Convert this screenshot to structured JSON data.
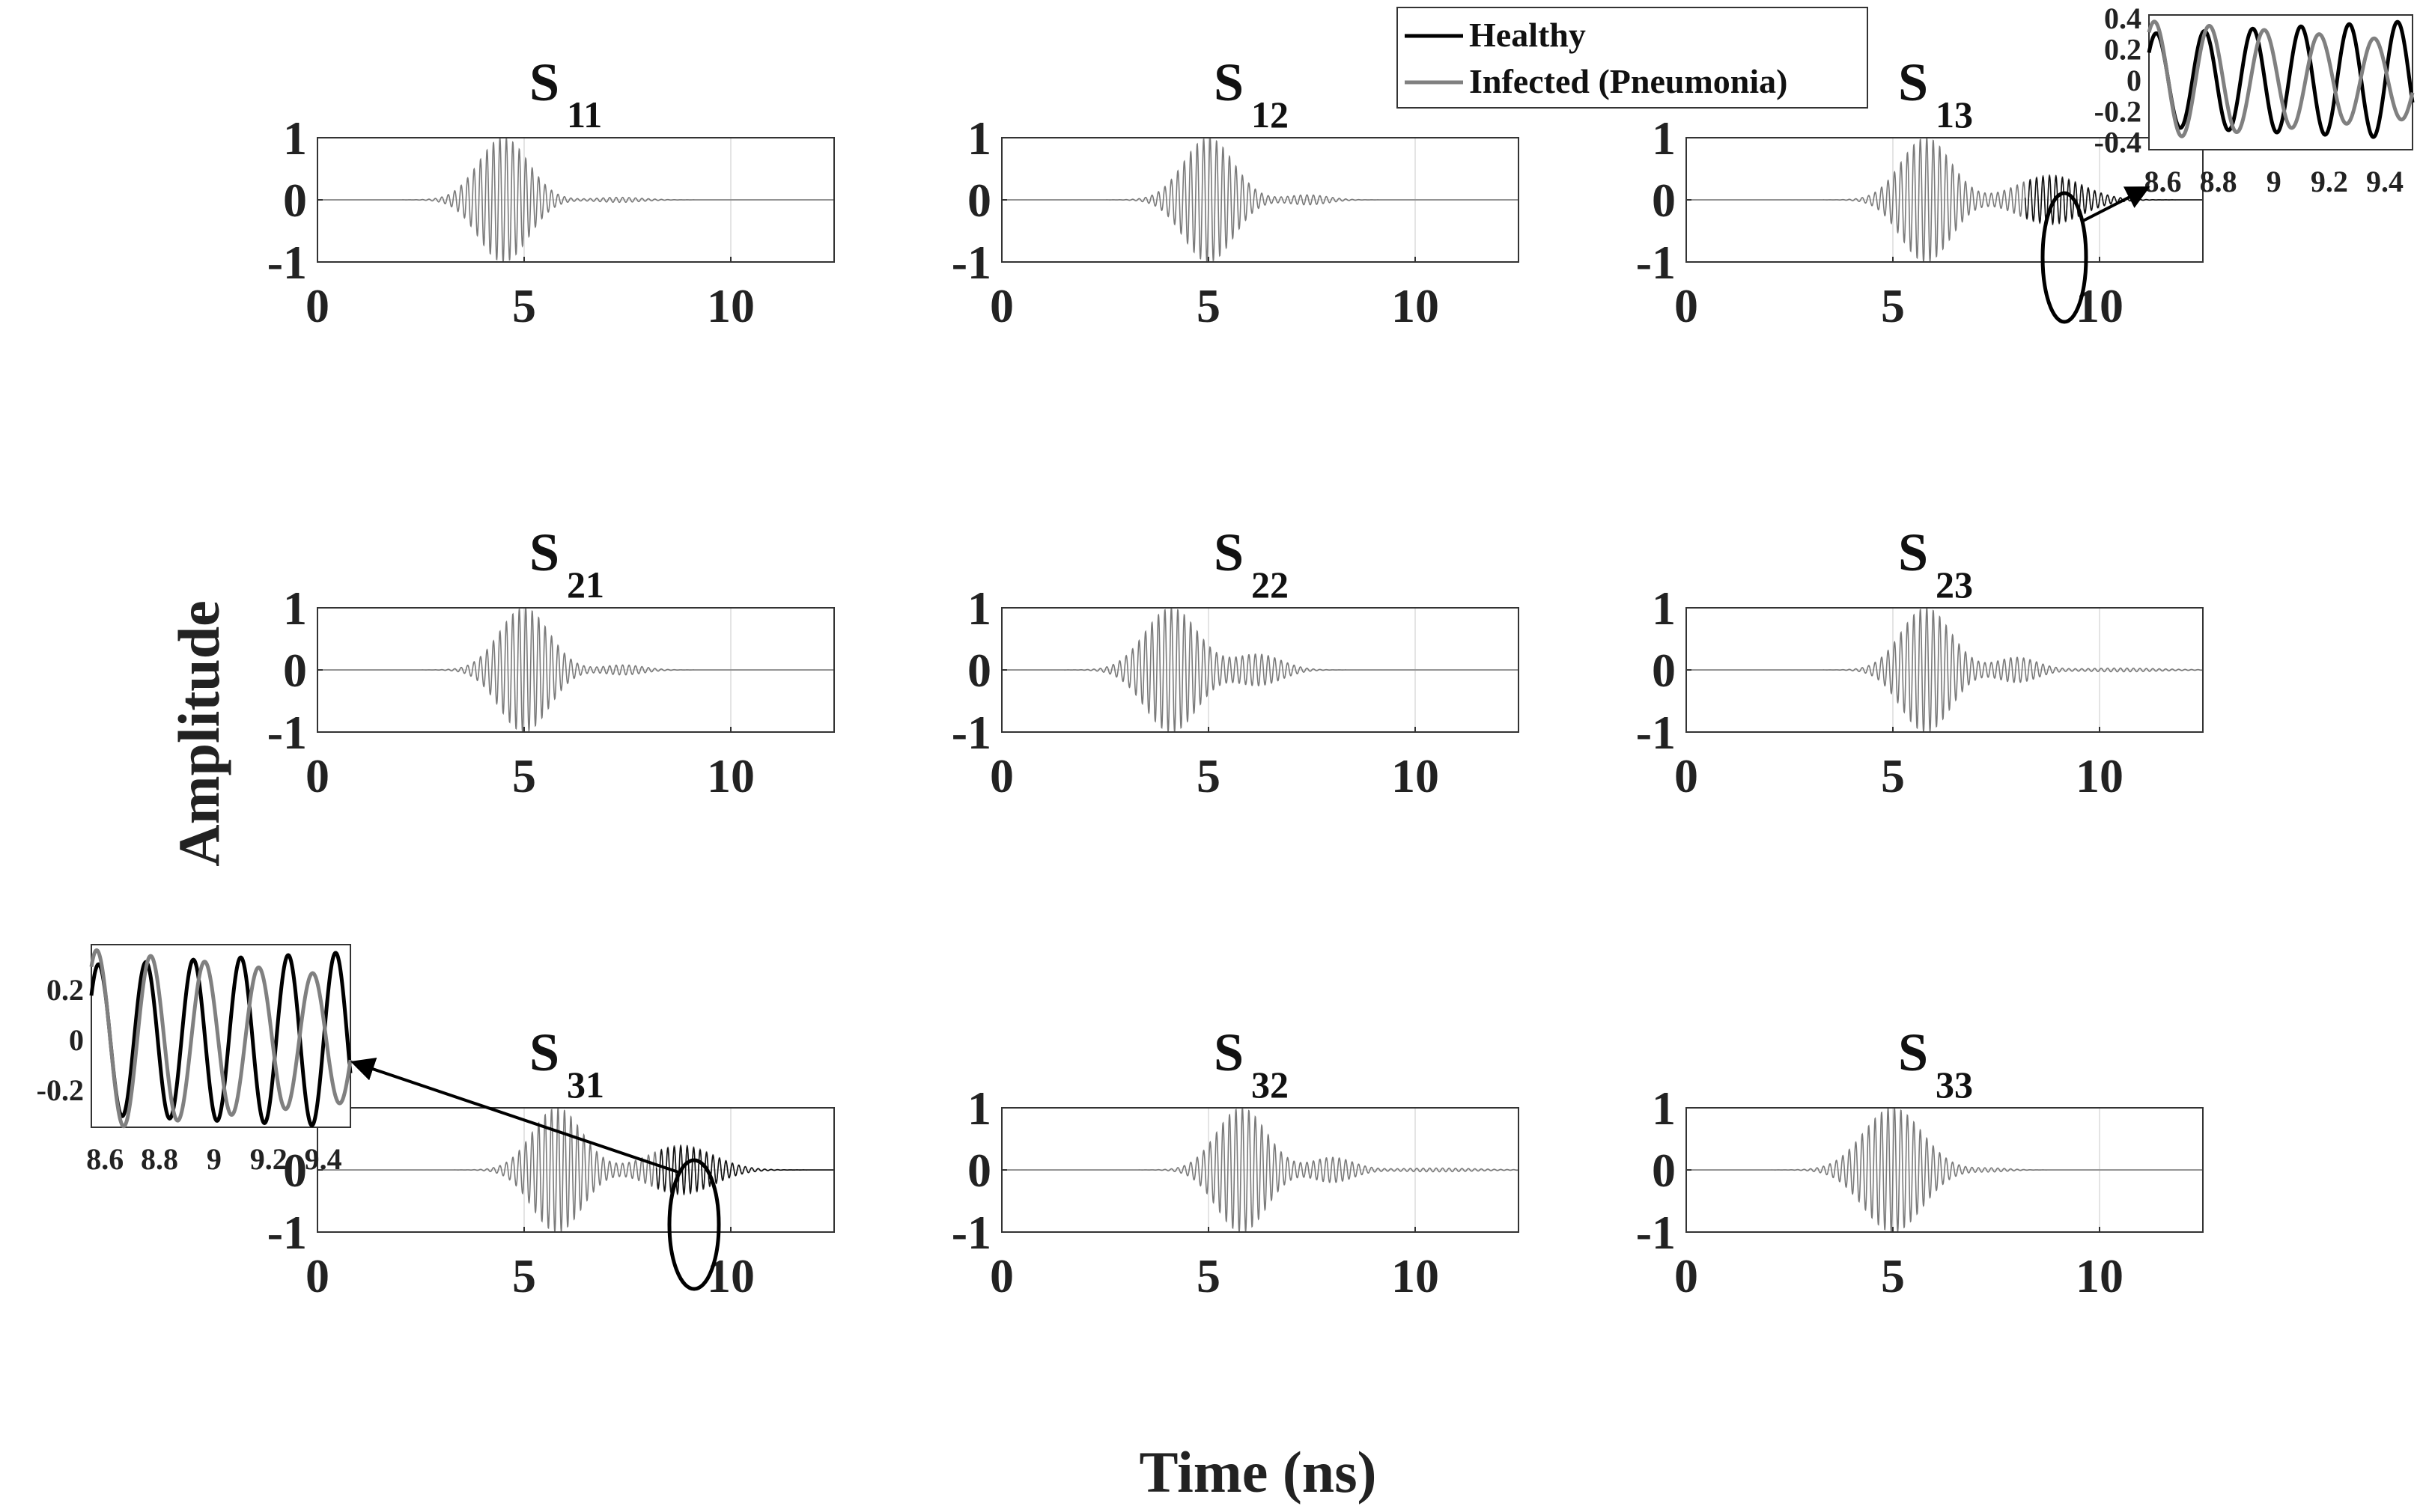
{
  "figure": {
    "xlabel": "Time (ns)",
    "ylabel": "Amplitude"
  },
  "legend": {
    "placement": "top-center",
    "items": [
      {
        "label": "Healthy",
        "color": "#000000"
      },
      {
        "label": "Infected (Pneumonia)",
        "color": "#808080"
      }
    ]
  },
  "chart_data": [
    {
      "type": "line",
      "title": "S",
      "title_sub": "11",
      "xlim": [
        0,
        12.5
      ],
      "ylim": [
        -1,
        1
      ],
      "xticks": [
        "0",
        "5",
        "10"
      ],
      "yticks": [
        "1",
        "0",
        "-1"
      ],
      "grid": true,
      "pulses": [
        {
          "center": 4.5,
          "width": 0.85,
          "amplitude": 1.0
        },
        {
          "center": 7.3,
          "width": 0.8,
          "amplitude": 0.04
        }
      ],
      "carrier_ghz": 6.4
    },
    {
      "type": "line",
      "title": "S",
      "title_sub": "12",
      "xlim": [
        0,
        12.5
      ],
      "ylim": [
        -1,
        1
      ],
      "xticks": [
        "0",
        "5",
        "10"
      ],
      "yticks": [
        "1",
        "0",
        "-1"
      ],
      "grid": true,
      "pulses": [
        {
          "center": 5.0,
          "width": 0.85,
          "amplitude": 1.0
        },
        {
          "center": 7.4,
          "width": 0.7,
          "amplitude": 0.08
        }
      ],
      "carrier_ghz": 6.4
    },
    {
      "type": "line",
      "title": "S",
      "title_sub": "13",
      "xlim": [
        0,
        12.5
      ],
      "ylim": [
        -1,
        1
      ],
      "xticks": [
        "0",
        "5",
        "10"
      ],
      "yticks": [
        "1",
        "0",
        "-1"
      ],
      "grid": true,
      "pulses": [
        {
          "center": 5.8,
          "width": 0.85,
          "amplitude": 1.0
        },
        {
          "center": 8.8,
          "width": 1.1,
          "amplitude": 0.4
        }
      ],
      "carrier_ghz": 6.4,
      "highlight_x": 9.0
    },
    {
      "type": "line",
      "title": "S",
      "title_sub": "21",
      "xlim": [
        0,
        12.5
      ],
      "ylim": [
        -1,
        1
      ],
      "xticks": [
        "0",
        "5",
        "10"
      ],
      "yticks": [
        "1",
        "0",
        "-1"
      ],
      "grid": true,
      "pulses": [
        {
          "center": 5.0,
          "width": 0.85,
          "amplitude": 1.0
        },
        {
          "center": 7.4,
          "width": 0.7,
          "amplitude": 0.08
        }
      ],
      "carrier_ghz": 6.4
    },
    {
      "type": "line",
      "title": "S",
      "title_sub": "22",
      "xlim": [
        0,
        12.5
      ],
      "ylim": [
        -1,
        1
      ],
      "xticks": [
        "0",
        "5",
        "10"
      ],
      "yticks": [
        "1",
        "0",
        "-1"
      ],
      "grid": true,
      "pulses": [
        {
          "center": 4.1,
          "width": 0.9,
          "amplitude": 1.0
        },
        {
          "center": 6.2,
          "width": 0.8,
          "amplitude": 0.25
        }
      ],
      "carrier_ghz": 6.4
    },
    {
      "type": "line",
      "title": "S",
      "title_sub": "23",
      "xlim": [
        0,
        12.5
      ],
      "ylim": [
        -1,
        1
      ],
      "xticks": [
        "0",
        "5",
        "10"
      ],
      "yticks": [
        "1",
        "0",
        "-1"
      ],
      "grid": true,
      "pulses": [
        {
          "center": 5.8,
          "width": 0.85,
          "amplitude": 1.0
        },
        {
          "center": 8.0,
          "width": 0.7,
          "amplitude": 0.2
        },
        {
          "center": 10.5,
          "width": 1.4,
          "amplitude": 0.03
        }
      ],
      "carrier_ghz": 6.4
    },
    {
      "type": "line",
      "title": "S",
      "title_sub": "31",
      "xlim": [
        0,
        12.5
      ],
      "ylim": [
        -1,
        1
      ],
      "xticks": [
        "0",
        "5",
        "10"
      ],
      "yticks": [
        "1",
        "0",
        "-1"
      ],
      "grid": true,
      "pulses": [
        {
          "center": 5.8,
          "width": 0.85,
          "amplitude": 1.0
        },
        {
          "center": 8.8,
          "width": 1.1,
          "amplitude": 0.4
        }
      ],
      "carrier_ghz": 6.4,
      "highlight_x": 9.0
    },
    {
      "type": "line",
      "title": "S",
      "title_sub": "32",
      "xlim": [
        0,
        12.5
      ],
      "ylim": [
        -1,
        1
      ],
      "xticks": [
        "0",
        "5",
        "10"
      ],
      "yticks": [
        "1",
        "0",
        "-1"
      ],
      "grid": true,
      "pulses": [
        {
          "center": 5.8,
          "width": 0.85,
          "amplitude": 1.0
        },
        {
          "center": 8.0,
          "width": 0.7,
          "amplitude": 0.2
        },
        {
          "center": 10.5,
          "width": 1.4,
          "amplitude": 0.03
        }
      ],
      "carrier_ghz": 6.4
    },
    {
      "type": "line",
      "title": "S",
      "title_sub": "33",
      "xlim": [
        0,
        12.5
      ],
      "ylim": [
        -1,
        1
      ],
      "xticks": [
        "0",
        "5",
        "10"
      ],
      "yticks": [
        "1",
        "0",
        "-1"
      ],
      "grid": true,
      "pulses": [
        {
          "center": 5.0,
          "width": 1.0,
          "amplitude": 1.0
        },
        {
          "center": 7.4,
          "width": 0.6,
          "amplitude": 0.03
        }
      ],
      "carrier_ghz": 6.4
    },
    {
      "type": "line",
      "title": "",
      "role": "inset-zoom-of-S13",
      "xlim": [
        8.55,
        9.5
      ],
      "ylim": [
        -0.45,
        0.42
      ],
      "xticks": [
        "8.6",
        "8.8",
        "9",
        "9.2",
        "9.4"
      ],
      "yticks": [
        "0.4",
        "0.2",
        "0",
        "-0.2",
        "-0.4"
      ],
      "grid": false,
      "series": [
        {
          "name": "Healthy",
          "frequency_ghz": 5.75,
          "phase_cycles": 0.05,
          "amplitude_start": 0.3,
          "amplitude_end": 0.38
        },
        {
          "name": "Infected (Pneumonia)",
          "frequency_ghz": 5.05,
          "phase_cycles": 0.1,
          "amplitude_start": 0.38,
          "amplitude_end": 0.25
        }
      ]
    },
    {
      "type": "line",
      "title": "",
      "role": "inset-zoom-of-S31",
      "xlim": [
        8.55,
        9.5
      ],
      "ylim": [
        -0.35,
        0.38
      ],
      "xticks": [
        "8.6",
        "8.8",
        "9",
        "9.2",
        "9.4"
      ],
      "yticks": [
        "0.2",
        "0",
        "-0.2"
      ],
      "grid": false,
      "series": [
        {
          "name": "Healthy",
          "frequency_ghz": 5.75,
          "phase_cycles": 0.05,
          "amplitude_start": 0.3,
          "amplitude_end": 0.35
        },
        {
          "name": "Infected (Pneumonia)",
          "frequency_ghz": 5.05,
          "phase_cycles": 0.1,
          "amplitude_start": 0.36,
          "amplitude_end": 0.25
        }
      ]
    }
  ]
}
